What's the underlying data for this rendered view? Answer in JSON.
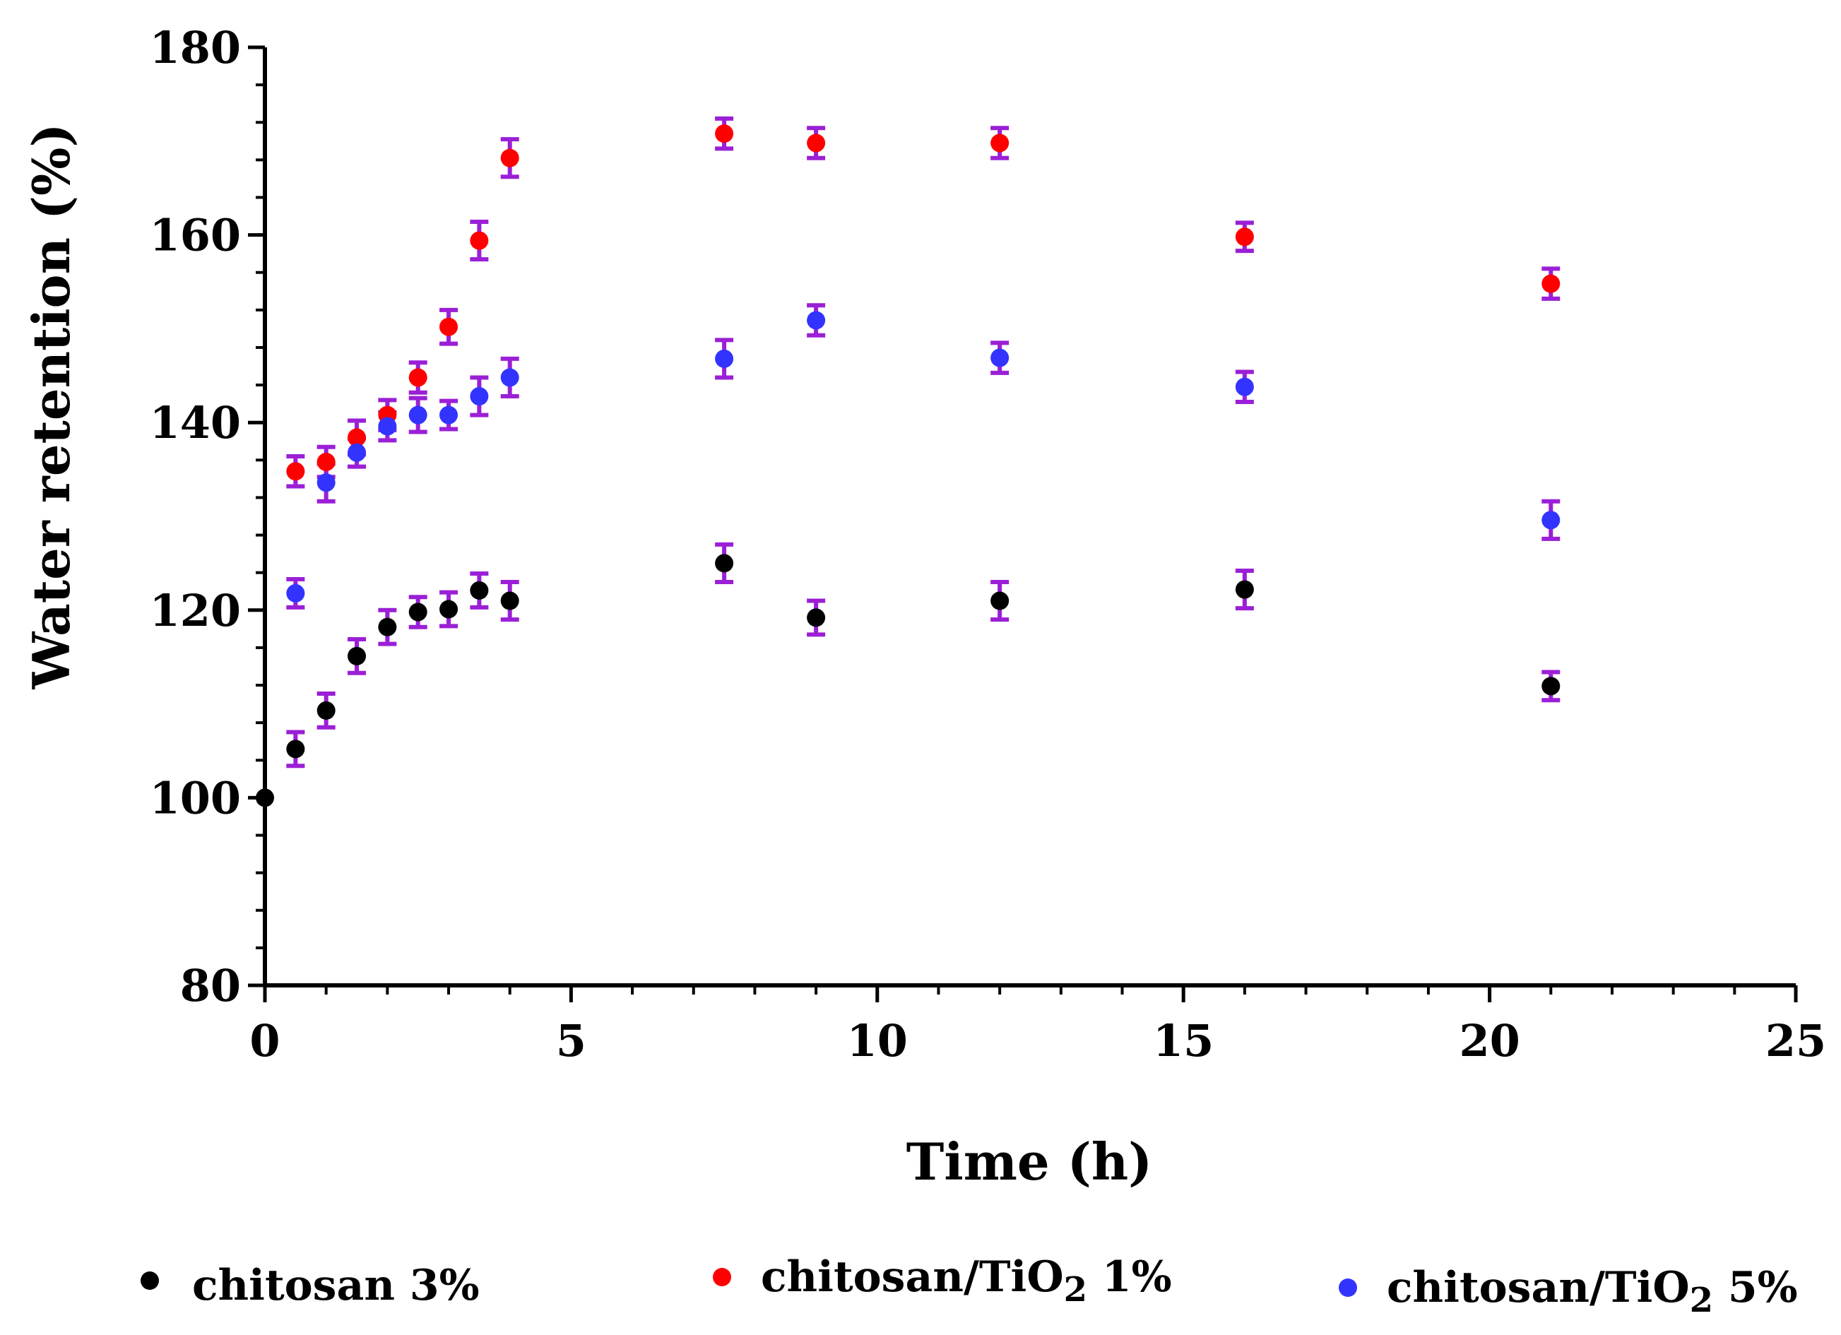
{
  "chart_data": {
    "type": "scatter",
    "title": "",
    "xlabel": "Time (h)",
    "ylabel": "Water retention (%)",
    "xlim": [
      0,
      25
    ],
    "ylim": [
      80,
      180
    ],
    "xticks": [
      "0",
      "5",
      "10",
      "15",
      "20",
      "25"
    ],
    "yticks": [
      "80",
      "100",
      "120",
      "140",
      "160",
      "180"
    ],
    "grid": false,
    "legend_position": "bottom",
    "error_bar_color": "#9b1fd6",
    "series": [
      {
        "name": "chitosan 3%",
        "legend_label_prefix": "chitosan 3%",
        "legend_label_sub": "",
        "legend_label_suffix": "",
        "color": "#000000",
        "points": [
          {
            "x": 0,
            "y": 100,
            "err": 0
          },
          {
            "x": 0.5,
            "y": 105.2,
            "err": 1.8
          },
          {
            "x": 1,
            "y": 109.3,
            "err": 1.8
          },
          {
            "x": 1.5,
            "y": 115.1,
            "err": 1.8
          },
          {
            "x": 2,
            "y": 118.2,
            "err": 1.8
          },
          {
            "x": 2.5,
            "y": 119.8,
            "err": 1.6
          },
          {
            "x": 3,
            "y": 120.1,
            "err": 1.8
          },
          {
            "x": 3.5,
            "y": 122.1,
            "err": 1.8
          },
          {
            "x": 4,
            "y": 121.0,
            "err": 2.0
          },
          {
            "x": 7.5,
            "y": 125.0,
            "err": 2.0
          },
          {
            "x": 9,
            "y": 119.2,
            "err": 1.8
          },
          {
            "x": 12,
            "y": 121.0,
            "err": 2.0
          },
          {
            "x": 16,
            "y": 122.2,
            "err": 2.0
          },
          {
            "x": 21,
            "y": 111.9,
            "err": 1.5
          }
        ]
      },
      {
        "name": "chitosan/TiO2 1%",
        "legend_label_prefix": "chitosan/TiO",
        "legend_label_sub": "2",
        "legend_label_suffix": " 1%",
        "color": "#ff0000",
        "points": [
          {
            "x": 0.5,
            "y": 134.8,
            "err": 1.6
          },
          {
            "x": 1,
            "y": 135.8,
            "err": 1.6
          },
          {
            "x": 1.5,
            "y": 138.4,
            "err": 1.8
          },
          {
            "x": 2,
            "y": 140.8,
            "err": 1.6
          },
          {
            "x": 2.5,
            "y": 144.8,
            "err": 1.6
          },
          {
            "x": 3,
            "y": 150.2,
            "err": 1.8
          },
          {
            "x": 3.5,
            "y": 159.4,
            "err": 2.0
          },
          {
            "x": 4,
            "y": 168.2,
            "err": 2.0
          },
          {
            "x": 7.5,
            "y": 170.8,
            "err": 1.6
          },
          {
            "x": 9,
            "y": 169.8,
            "err": 1.6
          },
          {
            "x": 12,
            "y": 169.8,
            "err": 1.6
          },
          {
            "x": 16,
            "y": 159.8,
            "err": 1.5
          },
          {
            "x": 21,
            "y": 154.8,
            "err": 1.6
          }
        ]
      },
      {
        "name": "chitosan/TiO2 5%",
        "legend_label_prefix": "chitosan/TiO",
        "legend_label_sub": "2",
        "legend_label_suffix": " 5%",
        "color": "#3333ff",
        "points": [
          {
            "x": 0.5,
            "y": 121.8,
            "err": 1.5
          },
          {
            "x": 1,
            "y": 133.6,
            "err": 2.0
          },
          {
            "x": 1.5,
            "y": 136.8,
            "err": 1.5
          },
          {
            "x": 2,
            "y": 139.6,
            "err": 1.5
          },
          {
            "x": 2.5,
            "y": 140.8,
            "err": 1.8
          },
          {
            "x": 3,
            "y": 140.8,
            "err": 1.5
          },
          {
            "x": 3.5,
            "y": 142.8,
            "err": 2.0
          },
          {
            "x": 4,
            "y": 144.8,
            "err": 2.0
          },
          {
            "x": 7.5,
            "y": 146.8,
            "err": 2.0
          },
          {
            "x": 9,
            "y": 150.9,
            "err": 1.6
          },
          {
            "x": 12,
            "y": 146.9,
            "err": 1.6
          },
          {
            "x": 16,
            "y": 143.8,
            "err": 1.6
          },
          {
            "x": 21,
            "y": 129.6,
            "err": 2.0
          }
        ]
      }
    ]
  }
}
